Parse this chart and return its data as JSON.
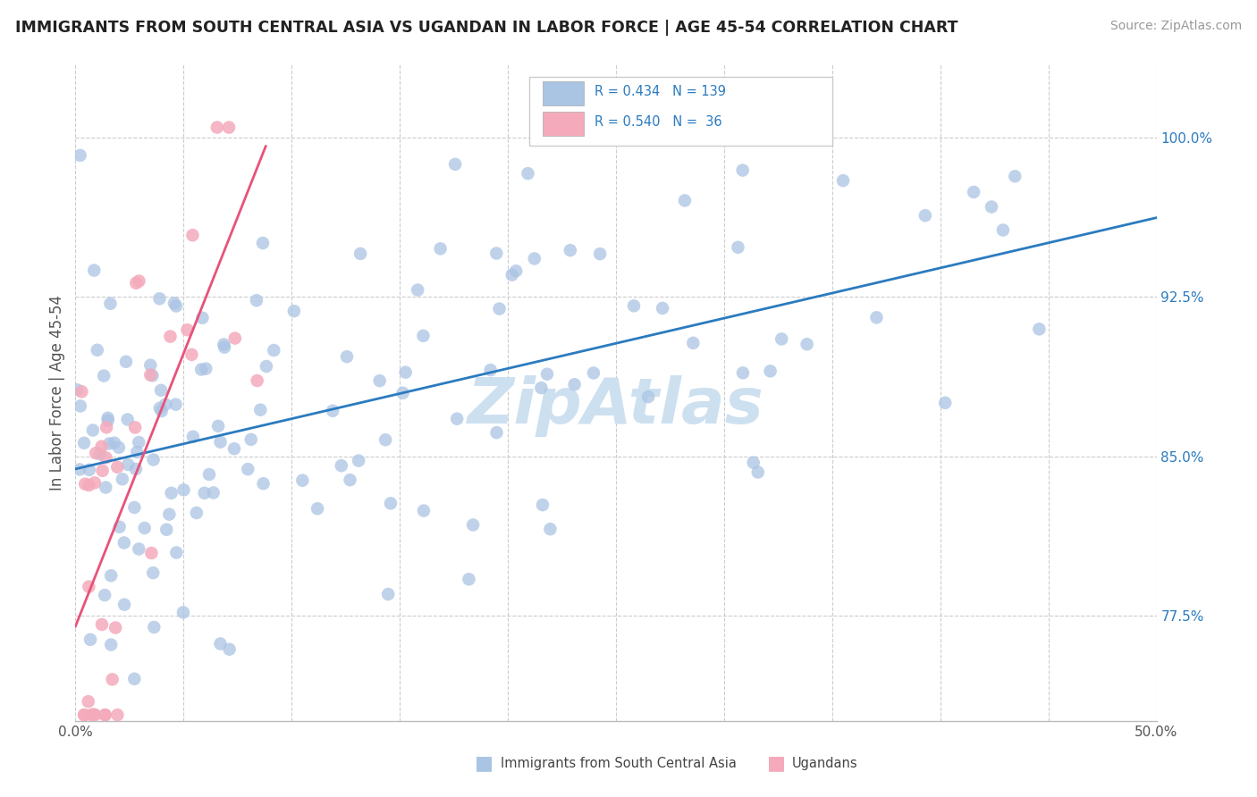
{
  "title": "IMMIGRANTS FROM SOUTH CENTRAL ASIA VS UGANDAN IN LABOR FORCE | AGE 45-54 CORRELATION CHART",
  "source": "Source: ZipAtlas.com",
  "ylabel": "In Labor Force | Age 45-54",
  "xlim": [
    0.0,
    0.5
  ],
  "ylim": [
    0.725,
    1.035
  ],
  "xticks": [
    0.0,
    0.05,
    0.1,
    0.15,
    0.2,
    0.25,
    0.3,
    0.35,
    0.4,
    0.45,
    0.5
  ],
  "yticks_right": [
    0.775,
    0.85,
    0.925,
    1.0
  ],
  "ytick_right_labels": [
    "77.5%",
    "85.0%",
    "92.5%",
    "100.0%"
  ],
  "blue_color": "#aac4e4",
  "pink_color": "#f4aabb",
  "trend_blue": "#2b7bbf",
  "trend_pink": "#e8527a",
  "watermark_text": "ZipAtlas",
  "watermark_color": "#cde0f0",
  "legend_r_blue": "R = 0.434",
  "legend_n_blue": "N = 139",
  "legend_r_pink": "R = 0.540",
  "legend_n_pink": "N =  36",
  "dot_size": 110
}
